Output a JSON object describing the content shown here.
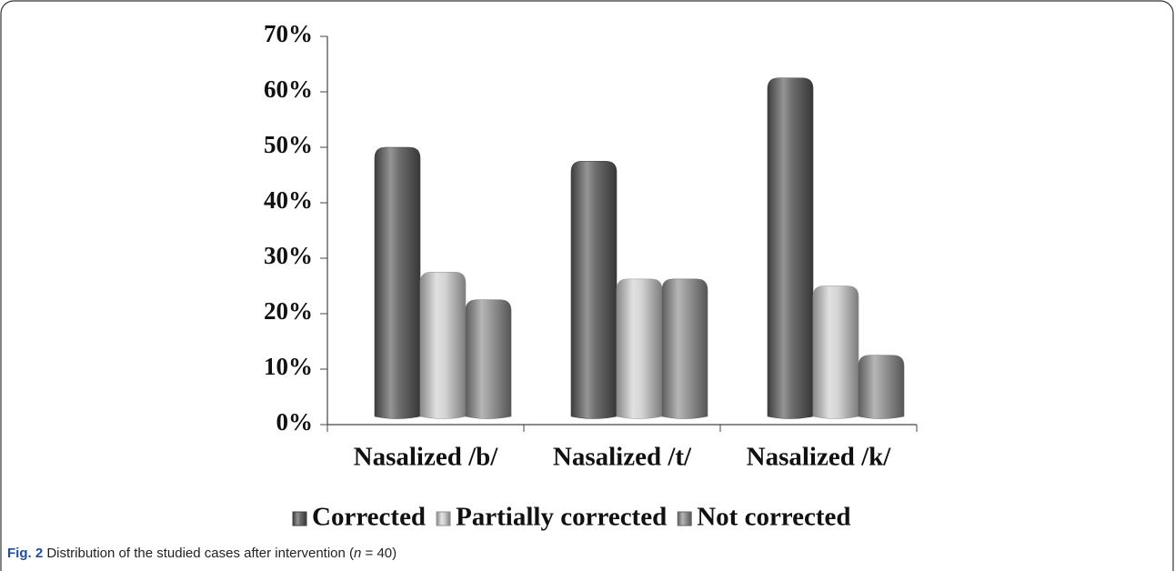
{
  "chart_data": {
    "type": "bar",
    "categories": [
      "Nasalized /b/",
      "Nasalized /t/",
      "Nasalized /k/"
    ],
    "series": [
      {
        "name": "Corrected",
        "color": "#5c5c5c",
        "values": [
          50,
          47.5,
          62.5
        ]
      },
      {
        "name": "Partially corrected",
        "color": "#cfcfcf",
        "values": [
          27.5,
          26.25,
          25
        ]
      },
      {
        "name": "Not corrected",
        "color": "#8e8e8e",
        "values": [
          22.5,
          26.25,
          12.5
        ]
      }
    ],
    "ylim": [
      0,
      70
    ],
    "yticks": [
      {
        "value": 0,
        "label": "0%"
      },
      {
        "value": 10,
        "label": "10%"
      },
      {
        "value": 20,
        "label": "20%"
      },
      {
        "value": 30,
        "label": "30%"
      },
      {
        "value": 40,
        "label": "40%"
      },
      {
        "value": 50,
        "label": "50%"
      },
      {
        "value": 60,
        "label": "60%"
      },
      {
        "value": 70,
        "label": "70%"
      }
    ],
    "grid": false,
    "legend": "bottom"
  },
  "caption": {
    "label": "Fig. 2",
    "parts": [
      " Distribution of the studied cases after intervention (",
      "n",
      " = 40)"
    ]
  }
}
